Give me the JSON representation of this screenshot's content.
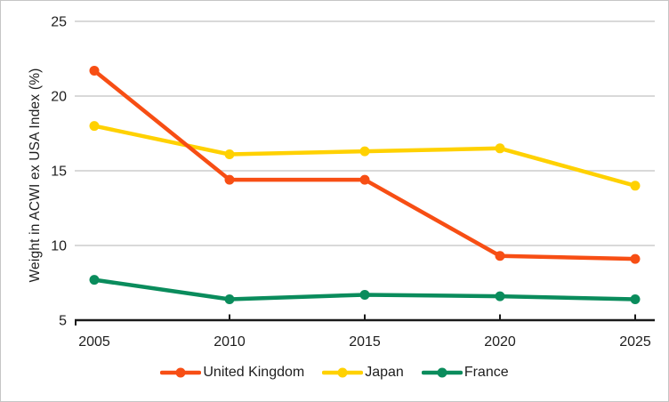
{
  "chart_data": {
    "type": "line",
    "title": "",
    "xlabel": "",
    "ylabel": "Weight in ACWI ex USA Index (%)",
    "x": [
      2005,
      2010,
      2015,
      2020,
      2025
    ],
    "x_tick_labels": [
      "2005",
      "2010",
      "2015",
      "2020",
      "2025"
    ],
    "y_ticks": [
      5,
      10,
      15,
      20,
      25
    ],
    "ylim": [
      5,
      25
    ],
    "grid": "horizontal",
    "legend_position": "bottom-center",
    "series": [
      {
        "name": "United Kingdom",
        "color": "#F74E14",
        "values": [
          21.7,
          14.4,
          14.4,
          9.3,
          9.1
        ]
      },
      {
        "name": "Japan",
        "color": "#FFD100",
        "values": [
          18.0,
          16.1,
          16.3,
          16.5,
          14.0
        ]
      },
      {
        "name": "France",
        "color": "#0A8C5C",
        "values": [
          7.7,
          6.4,
          6.7,
          6.6,
          6.4
        ]
      }
    ]
  },
  "colors": {
    "gridline": "#D9D9D9",
    "axis": "#1A1A1A",
    "tick_text": "#1E1E1E",
    "background": "#FFFFFF",
    "border": "#C6C6C6"
  }
}
